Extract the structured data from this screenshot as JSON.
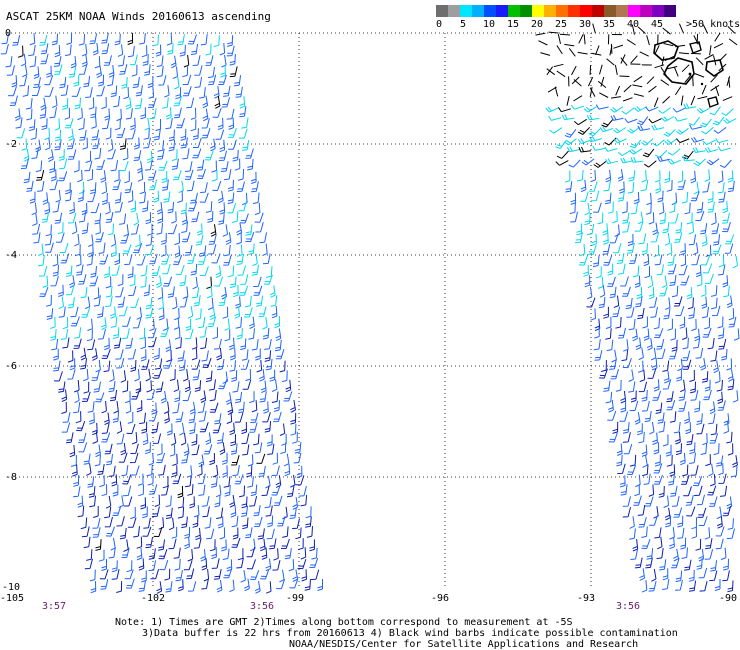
{
  "title": "ASCAT 25KM NOAA Winds 20160613 ascending",
  "legend": {
    "colors": [
      "#6e6e6e",
      "#9e9e9e",
      "#00e6ff",
      "#00b0ff",
      "#0050ff",
      "#1a1aff",
      "#00c000",
      "#009000",
      "#ffff00",
      "#ffb000",
      "#ff7000",
      "#ff3000",
      "#ff0000",
      "#c00000",
      "#8b5a2b",
      "#b07850",
      "#ff00ff",
      "#c000c0",
      "#8000c0",
      "#400080"
    ],
    "labels": [
      "0",
      "5",
      "10",
      "15",
      "20",
      "25",
      "30",
      "35",
      "40",
      "45",
      ">50 knots"
    ]
  },
  "map": {
    "lon_ticks": [
      "-105",
      "-102",
      "-99",
      "-96",
      "-93",
      "-90"
    ],
    "lat_ticks": [
      "-2",
      "-4",
      "-6",
      "-8",
      "-10"
    ],
    "corner_label": "0",
    "times": [
      "3:57",
      "3:56",
      "3:56"
    ],
    "lon_range": [
      -105,
      -90
    ],
    "lat_range": [
      -10,
      0
    ],
    "grid": true,
    "barb_colors": {
      "light": "#00d8f0",
      "medium": "#1e64ff",
      "dark": "#0a1eb4",
      "contaminated": "#000000"
    }
  },
  "notes": {
    "line1": "Note: 1) Times are GMT 2)Times along bottom correspond to measurement at -5S",
    "line2": "3)Data buffer is 22 hrs from 20160613 4) Black wind barbs indicate possible contamination",
    "line3": "NOAA/NESDIS/Center for Satellite Applications and Research"
  }
}
